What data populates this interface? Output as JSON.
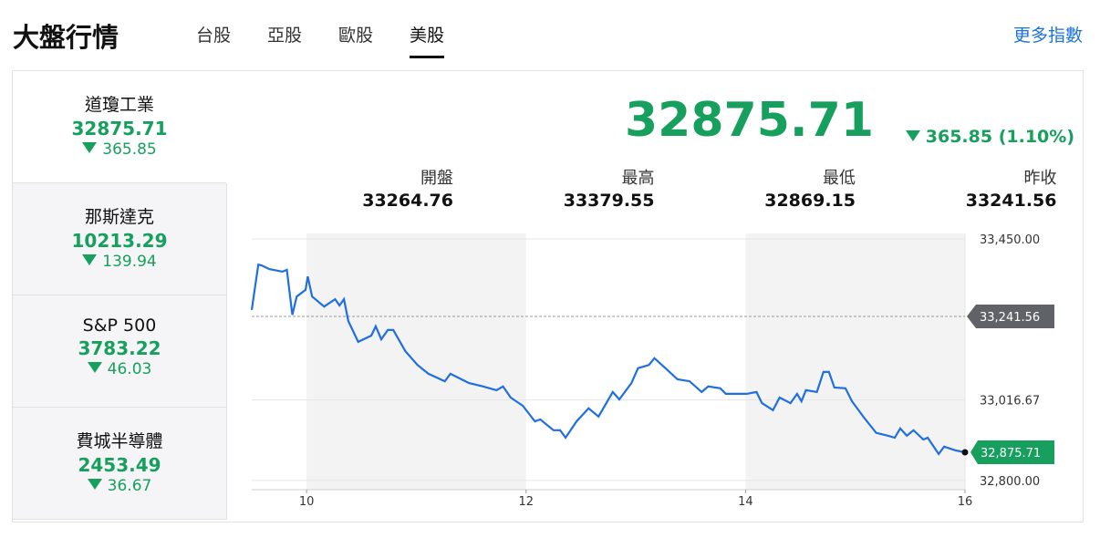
{
  "header": {
    "title": "大盤行情",
    "tabs": [
      "台股",
      "亞股",
      "歐股",
      "美股"
    ],
    "active_tab": 3,
    "more_link": "更多指數"
  },
  "indices": [
    {
      "name": "道瓊工業",
      "value": "32875.71",
      "change": "365.85"
    },
    {
      "name": "那斯達克",
      "value": "10213.29",
      "change": "139.94"
    },
    {
      "name": "S&P 500",
      "value": "3783.22",
      "change": "46.03"
    },
    {
      "name": "費城半導體",
      "value": "2453.49",
      "change": "36.67"
    }
  ],
  "selected_index": 0,
  "summary": {
    "value": "32875.71",
    "change": "365.85",
    "change_percent": "1.10%",
    "stats": [
      {
        "label": "開盤",
        "value": "33264.76"
      },
      {
        "label": "最高",
        "value": "33379.55"
      },
      {
        "label": "最低",
        "value": "32869.15"
      },
      {
        "label": "昨收",
        "value": "33241.56"
      }
    ]
  },
  "chart_data": {
    "type": "line",
    "color": "#1f6fe0",
    "x": [
      9.5,
      9.56,
      9.59,
      9.66,
      9.78,
      9.82,
      9.87,
      9.91,
      9.99,
      10.01,
      10.05,
      10.16,
      10.26,
      10.3,
      10.34,
      10.38,
      10.47,
      10.59,
      10.63,
      10.68,
      10.74,
      10.79,
      10.9,
      11.01,
      11.11,
      11.26,
      11.31,
      11.48,
      11.61,
      11.73,
      11.79,
      11.86,
      11.97,
      12.08,
      12.13,
      12.25,
      12.31,
      12.36,
      12.46,
      12.57,
      12.66,
      12.79,
      12.85,
      12.96,
      13.02,
      13.12,
      13.17,
      13.27,
      13.38,
      13.49,
      13.6,
      13.66,
      13.77,
      13.82,
      14.01,
      14.1,
      14.15,
      14.25,
      14.31,
      14.41,
      14.47,
      14.51,
      14.55,
      14.65,
      14.71,
      14.76,
      14.81,
      14.91,
      14.97,
      15.08,
      15.19,
      15.3,
      15.36,
      15.41,
      15.47,
      15.53,
      15.62,
      15.66,
      15.76,
      15.81,
      15.91,
      16
    ],
    "values": [
      33259,
      33381,
      33379,
      33369,
      33362,
      33367,
      33246,
      33295,
      33313,
      33349,
      33295,
      33268,
      33288,
      33271,
      33288,
      33229,
      33173,
      33190,
      33215,
      33180,
      33205,
      33205,
      33148,
      33111,
      33087,
      33067,
      33087,
      33062,
      33053,
      33043,
      33053,
      33023,
      33001,
      32959,
      32964,
      32935,
      32935,
      32915,
      32959,
      32994,
      32972,
      33038,
      33018,
      33062,
      33102,
      33111,
      33129,
      33102,
      33072,
      33067,
      33038,
      33053,
      33048,
      33033,
      33033,
      33038,
      33008,
      32989,
      33023,
      33008,
      33033,
      33013,
      33043,
      33038,
      33092,
      33092,
      33050,
      33048,
      33013,
      32969,
      32928,
      32920,
      32915,
      32940,
      32920,
      32935,
      32910,
      32915,
      32871,
      32891,
      32881,
      32875.71
    ],
    "xlim": [
      9.5,
      16
    ],
    "xticks": [
      10,
      12,
      14,
      16
    ],
    "ylim": [
      32775,
      33465
    ],
    "yticks": [
      {
        "value": 32800,
        "label": "32,800.00"
      },
      {
        "value": 33016.67,
        "label": "33,016.67"
      },
      {
        "value": 33450,
        "label": "33,450.00"
      }
    ],
    "grid": true,
    "bands": [
      [
        10,
        12
      ],
      [
        14,
        16
      ]
    ],
    "reference": {
      "value": 33241.56,
      "label": "33,241.56"
    },
    "current": {
      "value": 32875.71,
      "label": "32,875.71"
    }
  }
}
